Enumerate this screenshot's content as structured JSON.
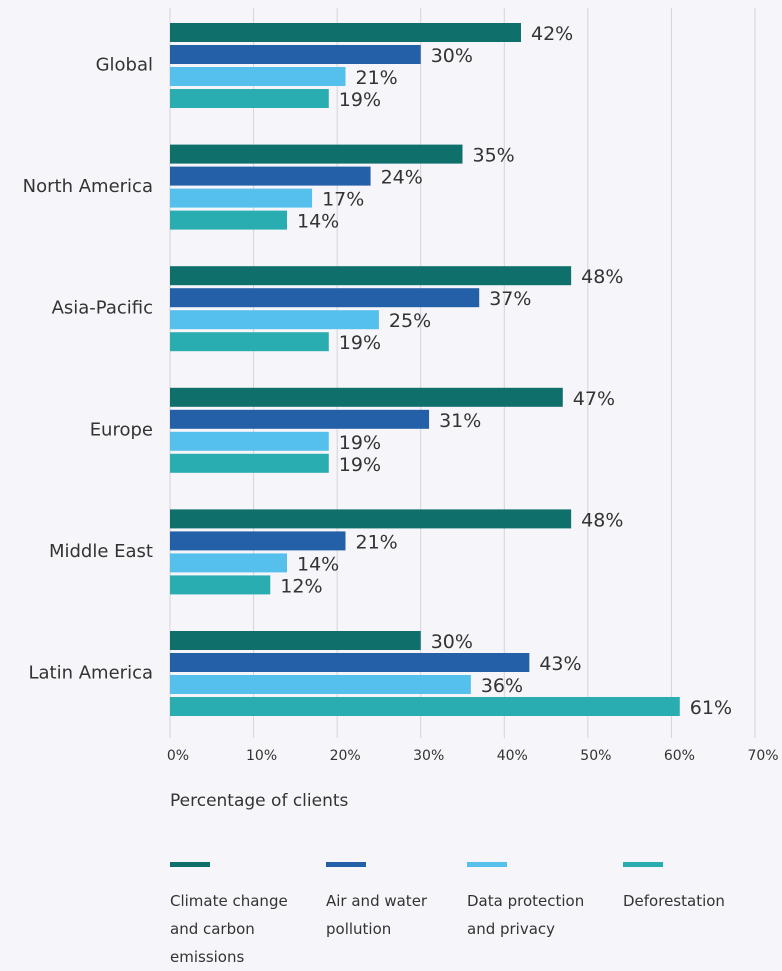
{
  "chart_data": {
    "type": "bar",
    "orientation": "horizontal",
    "categories": [
      "Global",
      "North America",
      "Asia-Pacific",
      "Europe",
      "Middle East",
      "Latin America"
    ],
    "series": [
      {
        "name": "Climate change and carbon emissions",
        "color": "#0e6f6b",
        "values": [
          42,
          35,
          48,
          47,
          48,
          30
        ],
        "value_labels": [
          "42%",
          "35%",
          "48%",
          "47%",
          "48%",
          "30%"
        ]
      },
      {
        "name": "Air and water pollution",
        "color": "#2460a7",
        "values": [
          30,
          24,
          37,
          31,
          21,
          43
        ],
        "value_labels": [
          "30%",
          "24%",
          "37%",
          "31%",
          "21%",
          "43%"
        ]
      },
      {
        "name": "Data protection and privacy",
        "color": "#55c0ec",
        "values": [
          21,
          17,
          25,
          19,
          14,
          36
        ],
        "value_labels": [
          "21%",
          "17%",
          "25%",
          "19%",
          "14%",
          "36%"
        ]
      },
      {
        "name": "Deforestation",
        "color": "#2aadb0",
        "values": [
          19,
          14,
          19,
          19,
          12,
          61
        ],
        "value_labels": [
          "19%",
          "14%",
          "19%",
          "19%",
          "12%",
          "61%"
        ]
      }
    ],
    "x_label": "Percentage of clients",
    "xlim": [
      0,
      70
    ],
    "xticks": [
      {
        "value": 0,
        "label": "0%"
      },
      {
        "value": 10,
        "label": "10%"
      },
      {
        "value": 20,
        "label": "20%"
      },
      {
        "value": 30,
        "label": "30%"
      },
      {
        "value": 40,
        "label": "40%"
      },
      {
        "value": 50,
        "label": "50%"
      },
      {
        "value": 60,
        "label": "60%"
      },
      {
        "value": 70,
        "label": "70%"
      }
    ],
    "grid": true
  }
}
